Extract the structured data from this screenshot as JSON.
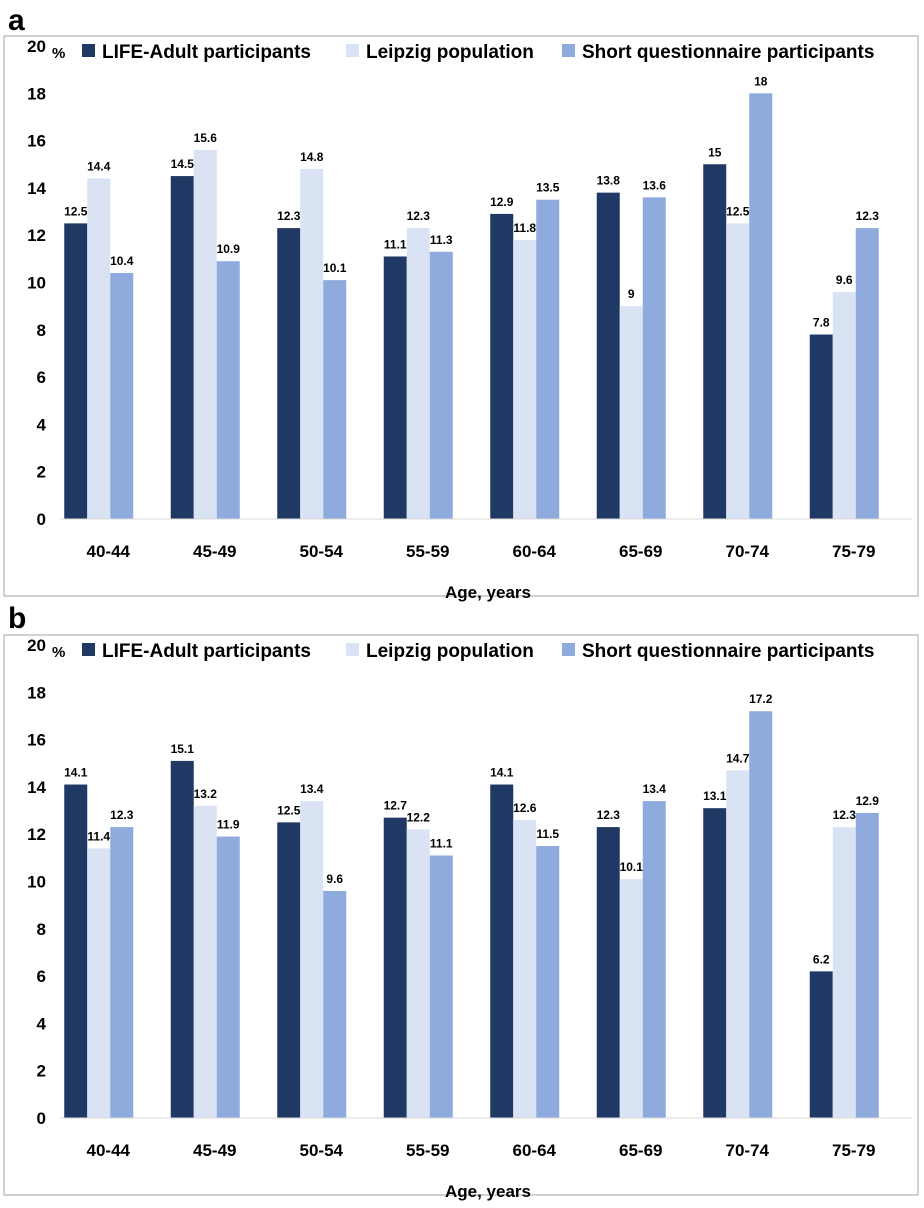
{
  "chart_data": [
    {
      "type": "bar",
      "panel_label": "a",
      "categories": [
        "40-44",
        "45-49",
        "50-54",
        "55-59",
        "60-64",
        "65-69",
        "70-74",
        "75-79"
      ],
      "series": [
        {
          "name": "LIFE-Adult participants",
          "values": [
            12.5,
            14.5,
            12.3,
            11.1,
            12.9,
            13.8,
            15,
            7.8
          ],
          "labels": [
            "12.5",
            "14.5",
            "12.3",
            "11.1",
            "12.9",
            "13.8",
            "15",
            "7.8"
          ]
        },
        {
          "name": "Leipzig population",
          "values": [
            14.4,
            15.6,
            14.8,
            12.3,
            11.8,
            9,
            12.5,
            9.6
          ],
          "labels": [
            "14.4",
            "15.6",
            "14.8",
            "12.3",
            "11.8",
            "9",
            "12.5",
            "9.6"
          ]
        },
        {
          "name": "Short questionnaire participants",
          "values": [
            10.4,
            10.9,
            10.1,
            11.3,
            13.5,
            13.6,
            18,
            12.3
          ],
          "labels": [
            "10.4",
            "10.9",
            "10.1",
            "11.3",
            "13.5",
            "13.6",
            "18",
            "12.3"
          ]
        }
      ],
      "yunit": "%",
      "xlabel": "Age, years",
      "ylim": [
        0,
        20
      ],
      "yticks": [
        "0",
        "2",
        "4",
        "6",
        "8",
        "10",
        "12",
        "14",
        "16",
        "18",
        "20"
      ],
      "legend": "top",
      "grid": false
    },
    {
      "type": "bar",
      "panel_label": "b",
      "categories": [
        "40-44",
        "45-49",
        "50-54",
        "55-59",
        "60-64",
        "65-69",
        "70-74",
        "75-79"
      ],
      "series": [
        {
          "name": "LIFE-Adult participants",
          "values": [
            14.1,
            15.1,
            12.5,
            12.7,
            14.1,
            12.3,
            13.1,
            6.2
          ],
          "labels": [
            "14.1",
            "15.1",
            "12.5",
            "12.7",
            "14.1",
            "12.3",
            "13.1",
            "6.2"
          ]
        },
        {
          "name": "Leipzig population",
          "values": [
            11.4,
            13.2,
            13.4,
            12.2,
            12.6,
            10.1,
            14.7,
            12.3
          ],
          "labels": [
            "11.4",
            "13.2",
            "13.4",
            "12.2",
            "12.6",
            "10.1",
            "14.7",
            "12.3"
          ]
        },
        {
          "name": "Short questionnaire participants",
          "values": [
            12.3,
            11.9,
            9.6,
            11.1,
            11.5,
            13.4,
            17.2,
            12.9
          ],
          "labels": [
            "12.3",
            "11.9",
            "9.6",
            "11.1",
            "11.5",
            "13.4",
            "17.2",
            "12.9"
          ]
        }
      ],
      "yunit": "%",
      "xlabel": "Age, years",
      "ylim": [
        0,
        20
      ],
      "yticks": [
        "0",
        "2",
        "4",
        "6",
        "8",
        "10",
        "12",
        "14",
        "16",
        "18",
        "20"
      ],
      "legend": "top",
      "grid": false
    }
  ],
  "colors": {
    "series": [
      "#1f3864",
      "#dae3f3",
      "#8faadc"
    ],
    "axis_box": "#a6a6a6"
  }
}
